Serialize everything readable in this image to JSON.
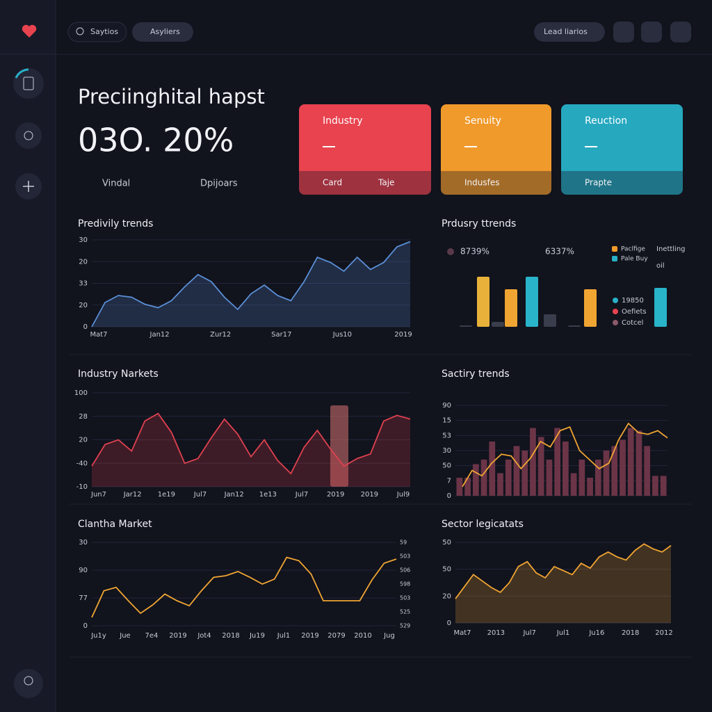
{
  "header": {
    "search": "Saytios",
    "tab": "Asyliers",
    "button": "Lead liarios"
  },
  "hero": {
    "title": "Preciinghital hapst",
    "value": "03O. 20%",
    "links": [
      "Vindal",
      "Dpijoars"
    ]
  },
  "cards": [
    {
      "title": "Industry",
      "footer": [
        "Card",
        "Taje"
      ],
      "color": "#e8434f"
    },
    {
      "title": "Senuity",
      "footer": [
        "Indusfes"
      ],
      "color": "#f09a2b"
    },
    {
      "title": "Reuction",
      "footer": [
        "Prapte"
      ],
      "color": "#26a8bf"
    }
  ],
  "chart_data": [
    {
      "type": "area",
      "title": "Predivily trends",
      "color": "#5a8fd6",
      "values": [
        0,
        28,
        36,
        34,
        26,
        22,
        30,
        46,
        60,
        52,
        34,
        20,
        38,
        48,
        36,
        30,
        52,
        80,
        74,
        64,
        80,
        66,
        74,
        92,
        98
      ],
      "ylim": [
        0,
        100
      ],
      "y_labels": [
        "30",
        "20",
        "33",
        "20",
        "0"
      ],
      "x_labels": [
        "Mat7",
        "Jan12",
        "Zur12",
        "Sar17",
        "Jus10",
        "2019"
      ]
    },
    {
      "type": "bar",
      "title": "Prdusry ttrends",
      "stats": [
        "8739%",
        "6337%"
      ],
      "categories": [
        null,
        null,
        null,
        null,
        null,
        null,
        null,
        null,
        null
      ],
      "values": [
        2,
        72,
        7,
        54,
        72,
        18,
        2,
        54,
        56
      ],
      "colors": [
        "#3a3d4c",
        "#e8b23a",
        "#3a3d4c",
        "#f0a532",
        "#29b4c9",
        "#3a3d4c",
        "#3a3d4c",
        "#f0a532",
        "#29b4c9"
      ],
      "ylim": [
        0,
        100
      ],
      "legend": [
        {
          "label": "Paclfige",
          "color": "#f09a2b"
        },
        {
          "label": "Pale Buy",
          "color": "#29b0c8"
        }
      ],
      "legend_notes": [
        "Inettling",
        "oil"
      ],
      "legend2": [
        {
          "label": "19850",
          "color": "#29b0c8"
        },
        {
          "label": "Oefiets",
          "color": "#e8434f"
        },
        {
          "label": "Cotcel",
          "color": "#8a5a6a"
        }
      ]
    },
    {
      "type": "area",
      "title": "Industry Narkets",
      "color": "#e0414f",
      "values": [
        22,
        45,
        50,
        38,
        70,
        78,
        58,
        25,
        30,
        52,
        72,
        56,
        32,
        50,
        28,
        14,
        42,
        60,
        40,
        22,
        30,
        35,
        70,
        76,
        72
      ],
      "ylim": [
        0,
        100
      ],
      "y_labels": [
        "100",
        "28",
        "20",
        "-40",
        "-10"
      ],
      "x_labels": [
        "Jun7",
        "Jar12",
        "1e19",
        "Jul7",
        "Jan12",
        "1e13",
        "Jul7",
        "2019",
        "2019",
        "Jul9"
      ]
    },
    {
      "type": "combo",
      "title": "Sactiry trends",
      "series": [
        {
          "type": "bar",
          "color": "#6b3447",
          "values": [
            20,
            20,
            35,
            40,
            60,
            25,
            40,
            55,
            50,
            75,
            65,
            40,
            75,
            60,
            25,
            40,
            20,
            40,
            50,
            55,
            62,
            75,
            72,
            55,
            22,
            22
          ]
        },
        {
          "type": "line",
          "color": "#f0a532",
          "values": [
            10,
            28,
            22,
            36,
            46,
            44,
            30,
            42,
            60,
            54,
            72,
            76,
            50,
            40,
            30,
            36,
            62,
            80,
            70,
            68,
            72,
            64
          ]
        }
      ],
      "ylim": [
        0,
        100
      ],
      "y_labels": [
        "90",
        "15",
        "53",
        "30",
        "50",
        "7",
        "0"
      ],
      "x_labels": []
    },
    {
      "type": "line",
      "title": "Clantha Market",
      "color": "#f0a532",
      "values": [
        10,
        42,
        46,
        30,
        15,
        25,
        38,
        30,
        24,
        42,
        58,
        60,
        65,
        58,
        50,
        56,
        82,
        78,
        62,
        30,
        30,
        30,
        30,
        55,
        75,
        80
      ],
      "ylim": [
        0,
        100
      ],
      "y_labels": [
        "30",
        "90",
        "77",
        "0"
      ],
      "y2_labels": [
        "59",
        "503",
        "506",
        "598",
        "503",
        "525",
        "529"
      ],
      "x_labels": [
        "Ju1y",
        "Jue",
        "7e4",
        "2019",
        "Jot4",
        "2018",
        "Ju19",
        "Jul1",
        "2019",
        "2079",
        "2010",
        "Jug"
      ]
    },
    {
      "type": "area",
      "title": "Sector legicatats",
      "color": "#f0a532",
      "values": [
        30,
        45,
        60,
        52,
        44,
        38,
        50,
        70,
        76,
        62,
        56,
        70,
        65,
        60,
        74,
        68,
        82,
        88,
        82,
        78,
        90,
        98,
        92,
        88,
        96
      ],
      "ylim": [
        0,
        100
      ],
      "y_labels": [
        "50",
        "50",
        "20",
        "0"
      ],
      "x_labels": [
        "Mat7",
        "2013",
        "Jul7",
        "Jul1",
        "Ju16",
        "2018",
        "2012"
      ]
    }
  ]
}
